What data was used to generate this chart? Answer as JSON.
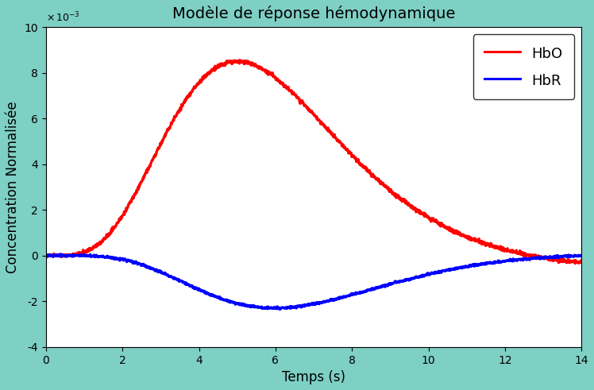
{
  "title": "Modèle de réponse hémodynamique",
  "xlabel": "Temps (s)",
  "ylabel": "Concentration Normalisée",
  "xlim": [
    0,
    14
  ],
  "ylim": [
    -0.004,
    0.01
  ],
  "yticks": [
    -0.004,
    -0.002,
    0,
    0.002,
    0.004,
    0.006,
    0.008,
    0.01
  ],
  "xticks": [
    0,
    2,
    4,
    6,
    8,
    10,
    12,
    14
  ],
  "hbo_color": "#ff0000",
  "hbr_color": "#0000ff",
  "background_color": "#7ecfc4",
  "plot_bg": "#ffffff",
  "legend_labels": [
    "HbO",
    "HbR"
  ],
  "scale_hbo": 0.0085,
  "scale_hbr": 0.0023,
  "title_fontsize": 14,
  "axis_label_fontsize": 12,
  "tick_fontsize": 10,
  "legend_fontsize": 13,
  "linewidth": 2.2
}
